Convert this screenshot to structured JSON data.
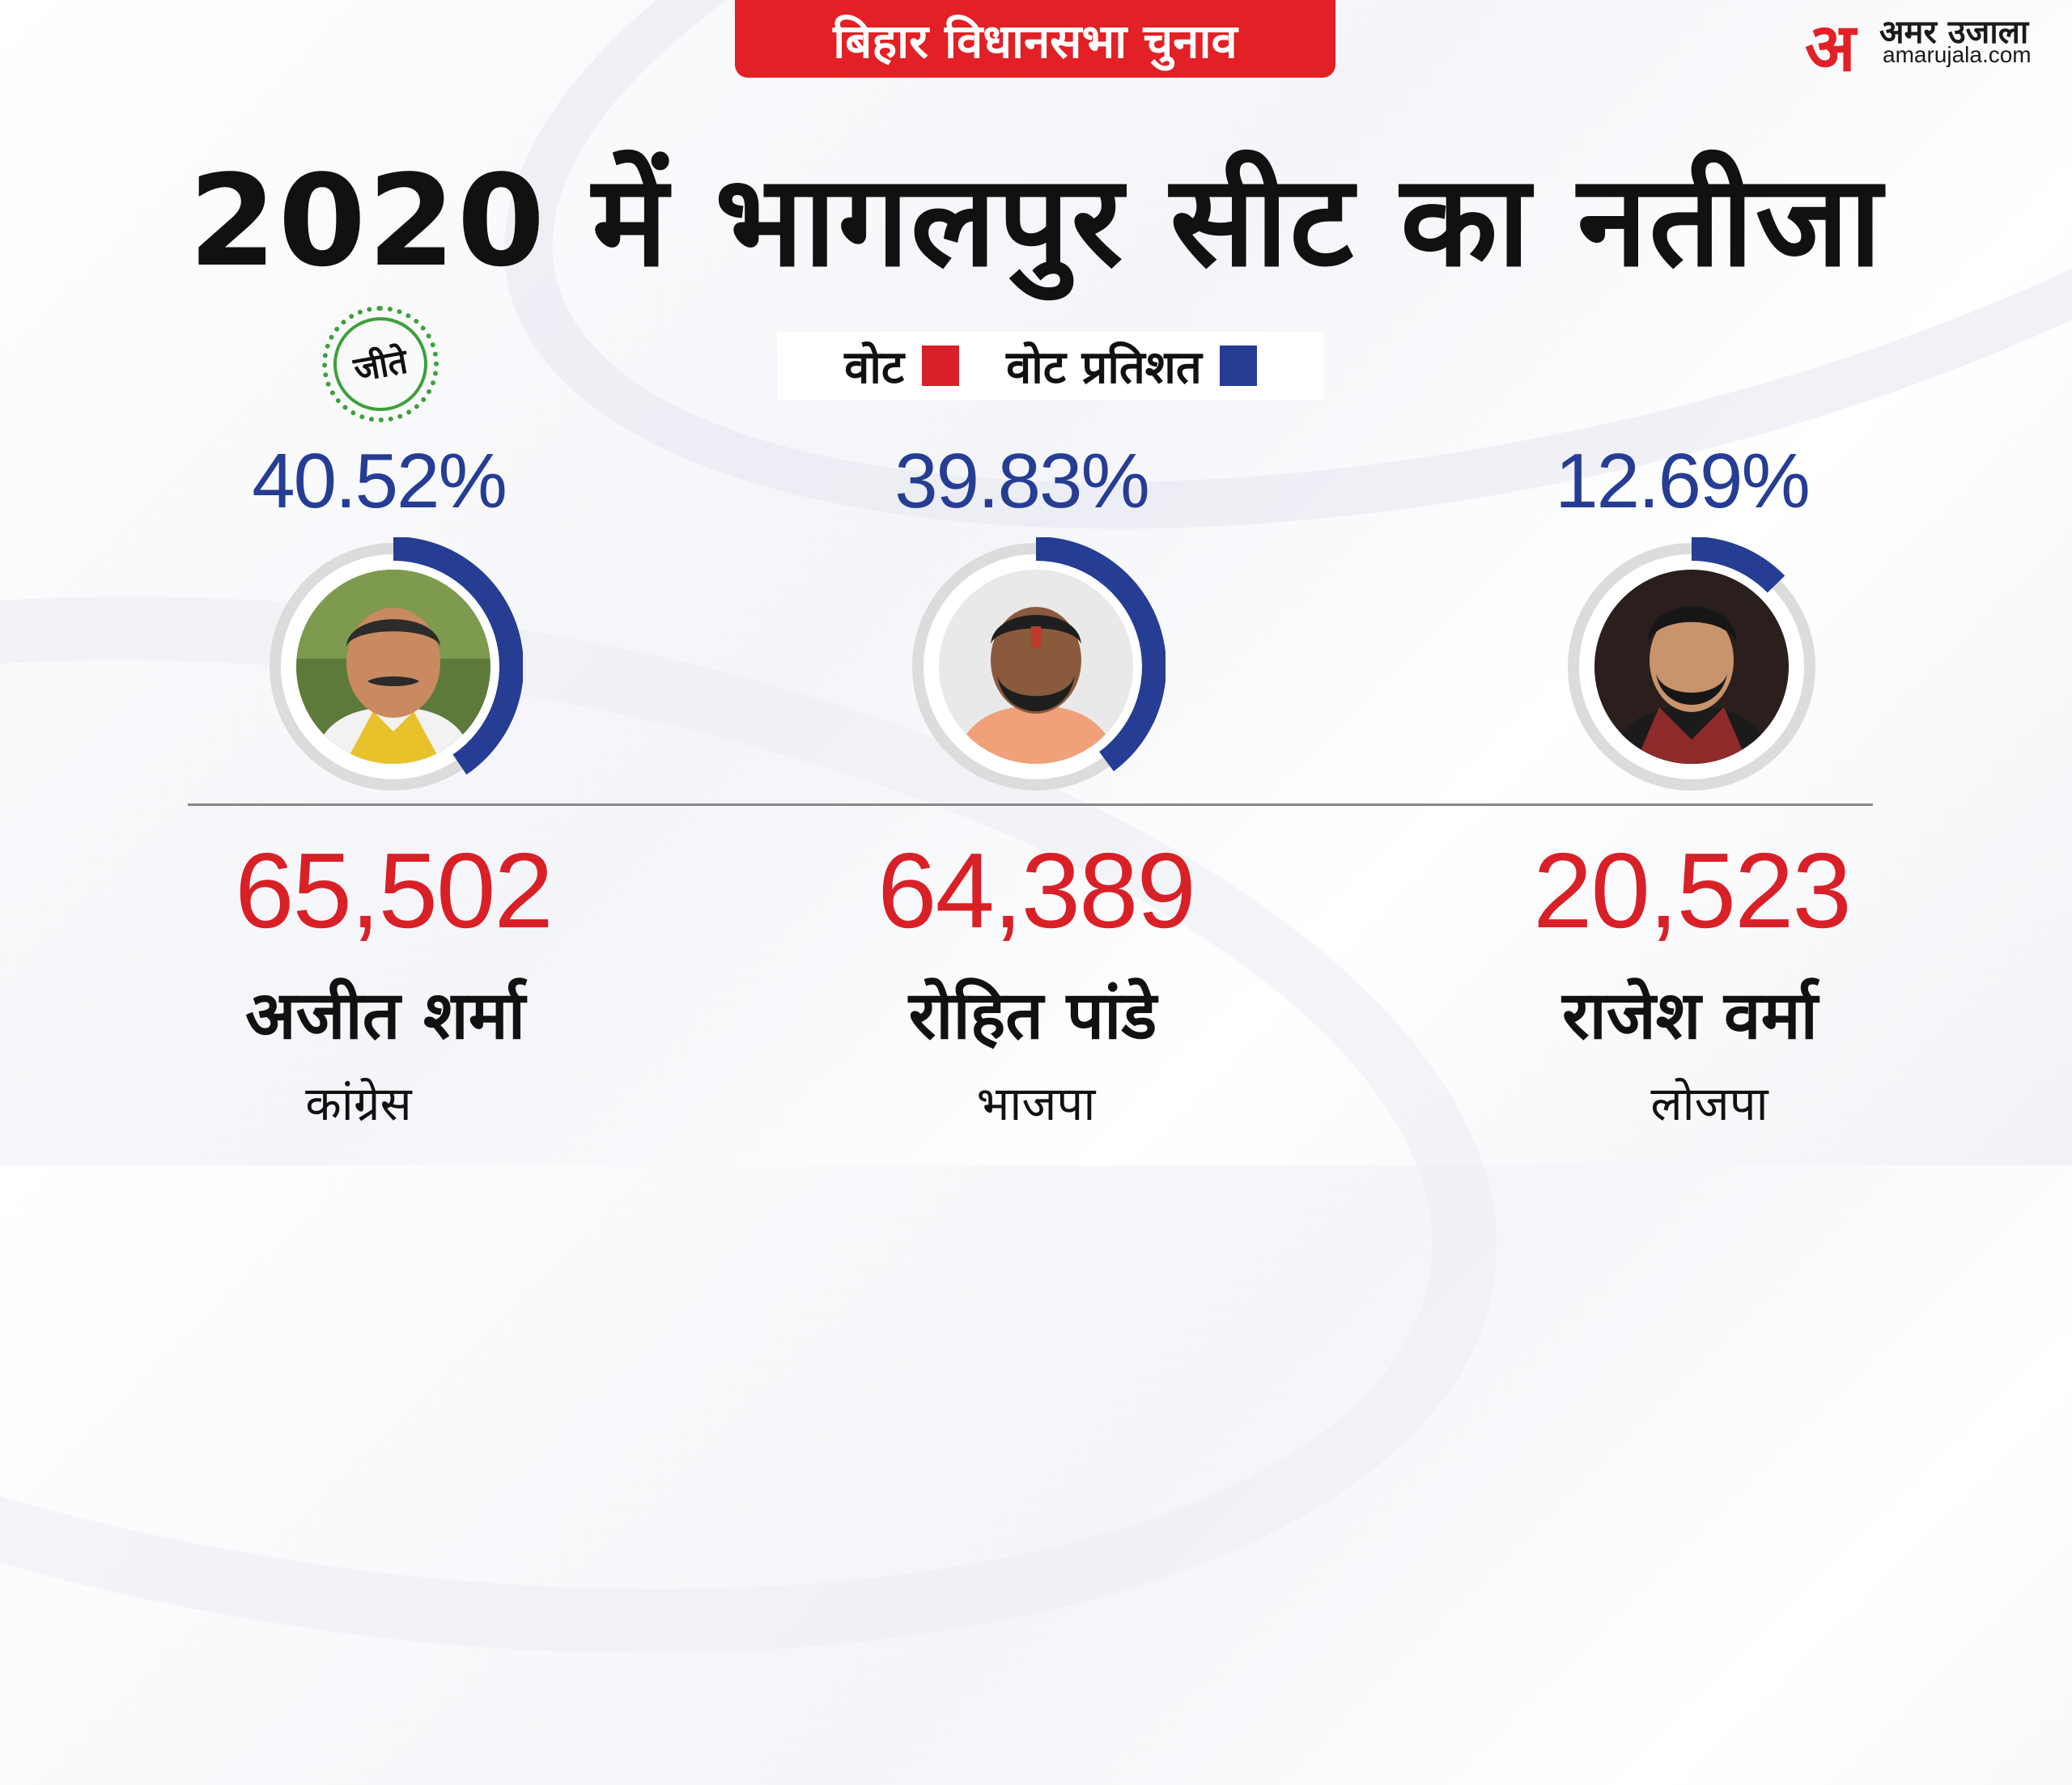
{
  "header": {
    "tag": "बिहार विधानसभा चुनाव",
    "title": "2020 में भागलपुर सीट का नतीजा"
  },
  "brand": {
    "logo_letter": "अ",
    "logo_name": "अमर उजाला",
    "logo_url": "amarujala.com"
  },
  "legend": {
    "votes_label": "वोट",
    "percent_label": "वोट प्रतिशत",
    "votes_color": "#d92027",
    "percent_color": "#253d93"
  },
  "winner_badge": "जीते",
  "candidates": [
    {
      "name": "अजीत शर्मा",
      "party": "कांग्रेस",
      "votes": "65,502",
      "percent": "40.52%",
      "share": 40.52,
      "winner": true
    },
    {
      "name": "रोहित पांडे",
      "party": "भाजपा",
      "votes": "64,389",
      "percent": "39.83%",
      "share": 39.83,
      "winner": false
    },
    {
      "name": "राजेश वर्मा",
      "party": "लोजपा",
      "votes": "20,523",
      "percent": "12.69%",
      "share": 12.69,
      "winner": false
    }
  ]
}
